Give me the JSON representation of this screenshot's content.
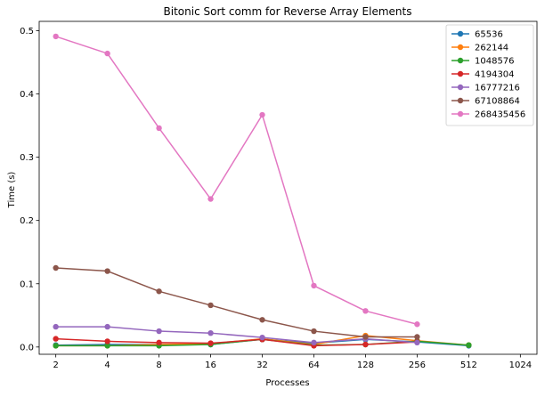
{
  "chart_data": {
    "type": "line",
    "title": "Bitonic Sort comm for Reverse Array Elements",
    "xlabel": "Processes",
    "ylabel": "Time (s)",
    "x_scale": "log2",
    "xlim": [
      1.6,
      1280
    ],
    "ylim": [
      -0.0115,
      0.5148
    ],
    "xticks": [
      2,
      4,
      8,
      16,
      32,
      64,
      128,
      256,
      512,
      1024
    ],
    "yticks": [
      0.0,
      0.1,
      0.2,
      0.3,
      0.4,
      0.5
    ],
    "ytick_labels": [
      "0.0",
      "0.1",
      "0.2",
      "0.3",
      "0.4",
      "0.5"
    ],
    "legend_position": "upper-right",
    "grid": false,
    "series": [
      {
        "name": "65536",
        "color": "#1f77b4",
        "x": [
          2,
          4,
          8,
          16,
          32,
          64,
          128,
          256,
          512
        ],
        "y": [
          0.003,
          0.004,
          0.004,
          0.004,
          0.012,
          0.006,
          0.012,
          0.008,
          0.002
        ]
      },
      {
        "name": "262144",
        "color": "#ff7f0e",
        "x": [
          2,
          4,
          8,
          16,
          32,
          64,
          128,
          256,
          512
        ],
        "y": [
          0.002,
          0.002,
          0.004,
          0.005,
          0.013,
          0.004,
          0.018,
          0.01,
          0.003
        ]
      },
      {
        "name": "1048576",
        "color": "#2ca02c",
        "x": [
          2,
          4,
          8,
          16,
          32,
          64,
          128,
          256,
          512
        ],
        "y": [
          0.002,
          0.002,
          0.002,
          0.004,
          0.012,
          0.003,
          0.004,
          0.009,
          0.003
        ]
      },
      {
        "name": "4194304",
        "color": "#d62728",
        "x": [
          2,
          4,
          8,
          16,
          32,
          64,
          128,
          256
        ],
        "y": [
          0.013,
          0.009,
          0.007,
          0.006,
          0.012,
          0.002,
          0.004,
          0.008
        ]
      },
      {
        "name": "16777216",
        "color": "#9467bd",
        "x": [
          2,
          4,
          8,
          16,
          32,
          64,
          128,
          256
        ],
        "y": [
          0.032,
          0.032,
          0.025,
          0.022,
          0.015,
          0.007,
          0.013,
          0.007
        ]
      },
      {
        "name": "67108864",
        "color": "#8c564b",
        "x": [
          2,
          4,
          8,
          16,
          32,
          64,
          128,
          256
        ],
        "y": [
          0.125,
          0.12,
          0.088,
          0.066,
          0.043,
          0.025,
          0.016,
          0.016
        ]
      },
      {
        "name": "268435456",
        "color": "#e377c2",
        "x": [
          2,
          4,
          8,
          16,
          32,
          64,
          128,
          256
        ],
        "y": [
          0.491,
          0.464,
          0.346,
          0.234,
          0.367,
          0.097,
          0.057,
          0.036
        ]
      }
    ]
  }
}
